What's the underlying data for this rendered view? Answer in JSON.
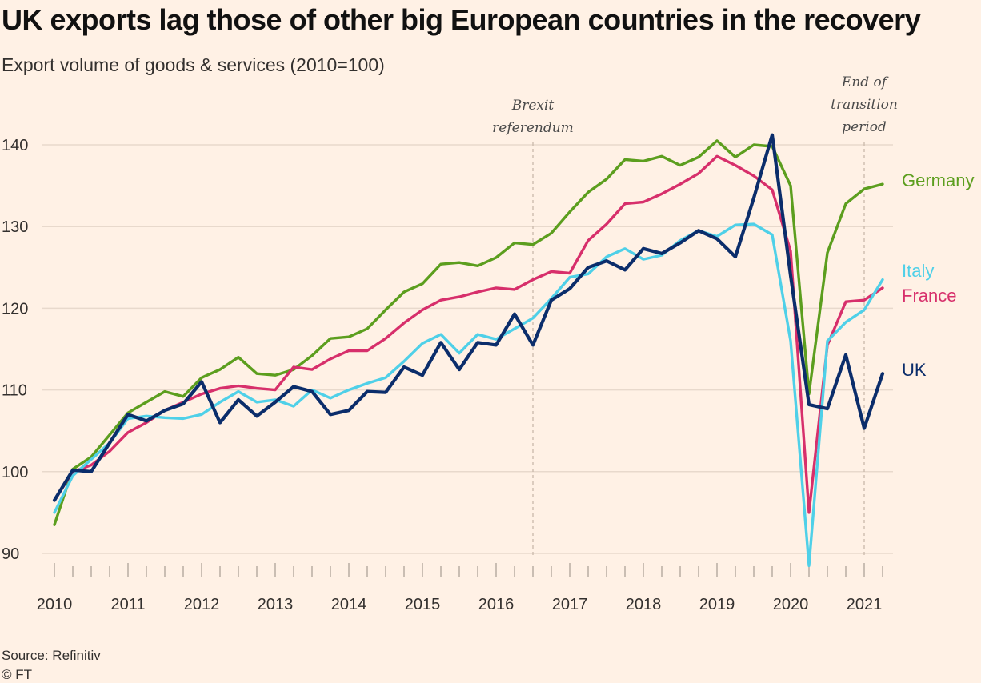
{
  "chart_data": {
    "type": "line",
    "title": "UK exports lag those of other big European countries in the recovery",
    "subtitle": "Export volume of goods & services (2010=100)",
    "source": "Source: Refinitiv",
    "copyright": "© FT",
    "ylim": [
      88,
      142
    ],
    "yticks": [
      90,
      100,
      110,
      120,
      130,
      140
    ],
    "xticks": [
      "2010",
      "2011",
      "2012",
      "2013",
      "2014",
      "2015",
      "2016",
      "2017",
      "2018",
      "2019",
      "2020",
      "2021"
    ],
    "x_start": 2010.0,
    "x_step": 0.25,
    "grid": true,
    "annotations": [
      {
        "label_lines": [
          "Brexit",
          "referendum"
        ],
        "x": 2016.5
      },
      {
        "label_lines": [
          "End of",
          "transition",
          "period"
        ],
        "x": 2021.0
      }
    ],
    "series": [
      {
        "name": "Germany",
        "color": "#5c9e1e",
        "values": [
          93.5,
          100.3,
          101.8,
          104.5,
          107.2,
          108.5,
          109.8,
          109.2,
          111.5,
          112.5,
          114.0,
          112.0,
          111.8,
          112.5,
          114.2,
          116.3,
          116.5,
          117.5,
          119.8,
          122.0,
          123.0,
          125.4,
          125.6,
          125.2,
          126.2,
          128.0,
          127.8,
          129.2,
          131.8,
          134.2,
          135.8,
          138.2,
          138.0,
          138.6,
          137.5,
          138.5,
          140.5,
          138.5,
          140.0,
          139.8,
          135.0,
          109.5,
          126.8,
          132.8,
          134.6,
          135.2
        ]
      },
      {
        "name": "France",
        "color": "#d72f6b",
        "values": [
          96.5,
          100.0,
          100.8,
          102.5,
          104.8,
          106.0,
          107.5,
          108.5,
          109.5,
          110.2,
          110.5,
          110.2,
          110.0,
          112.8,
          112.5,
          113.8,
          114.8,
          114.8,
          116.3,
          118.2,
          119.8,
          121.0,
          121.4,
          122.0,
          122.5,
          122.3,
          123.5,
          124.5,
          124.3,
          128.3,
          130.3,
          132.8,
          133.0,
          134.0,
          135.2,
          136.5,
          138.6,
          137.5,
          136.2,
          134.5,
          127.0,
          95.0,
          115.5,
          120.8,
          121.0,
          122.5
        ]
      },
      {
        "name": "Italy",
        "color": "#4fd0e8",
        "values": [
          95.0,
          99.5,
          101.5,
          103.5,
          106.5,
          106.8,
          106.6,
          106.5,
          107.0,
          108.5,
          109.8,
          108.5,
          108.8,
          108.0,
          110.0,
          109.0,
          110.0,
          110.8,
          111.5,
          113.5,
          115.7,
          116.8,
          114.5,
          116.8,
          116.2,
          117.5,
          118.8,
          121.2,
          123.8,
          124.2,
          126.3,
          127.3,
          126.0,
          126.5,
          128.3,
          129.5,
          128.8,
          130.2,
          130.3,
          129.0,
          116.0,
          88.5,
          116.0,
          118.3,
          119.8,
          123.5
        ]
      },
      {
        "name": "UK",
        "color": "#0b2d6b",
        "values": [
          96.5,
          100.2,
          100.0,
          103.5,
          107.0,
          106.2,
          107.5,
          108.3,
          111.0,
          106.0,
          108.8,
          106.8,
          108.5,
          110.4,
          109.8,
          107.0,
          107.5,
          109.8,
          109.7,
          112.8,
          111.8,
          115.8,
          112.5,
          115.8,
          115.5,
          119.3,
          115.5,
          121.0,
          122.4,
          125.0,
          125.8,
          124.7,
          127.3,
          126.7,
          128.0,
          129.5,
          128.5,
          126.3,
          133.5,
          141.2,
          124.0,
          108.2,
          107.7,
          114.3,
          105.3,
          112.0
        ]
      }
    ]
  }
}
